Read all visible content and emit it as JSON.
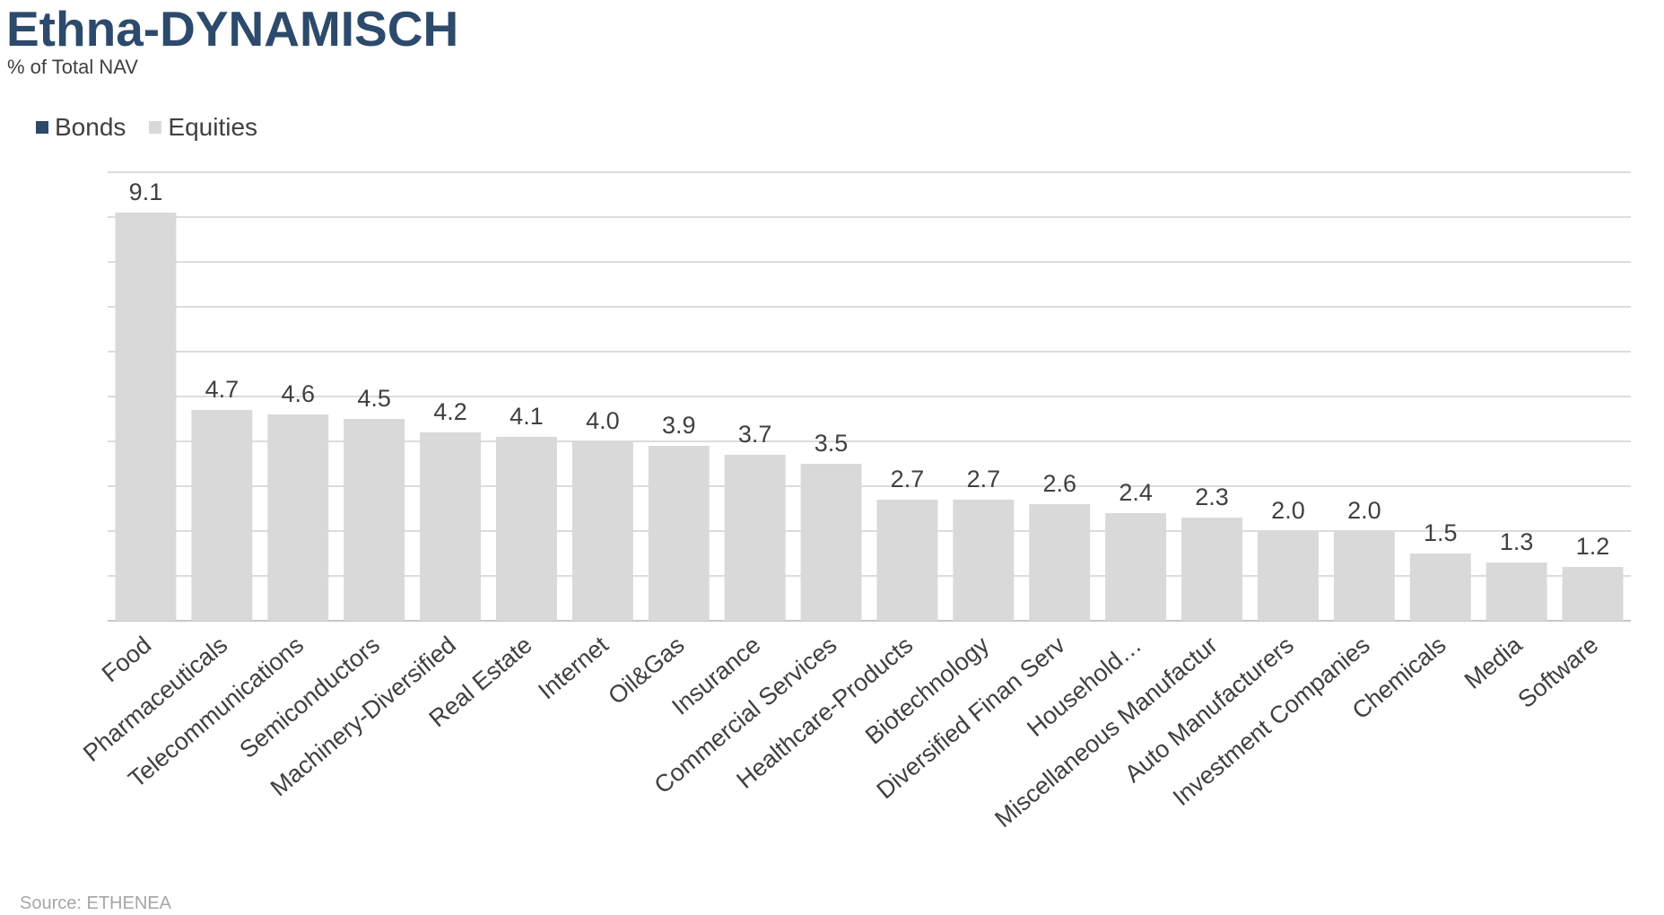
{
  "header": {
    "title": "Ethna-DYNAMISCH",
    "subtitle": "% of Total NAV"
  },
  "footer": {
    "source": "Source: ETHENEA"
  },
  "colors": {
    "bonds": "#2c4a6b",
    "equities": "#d9d9d9",
    "gridline": "#d0d0d0",
    "axis_text": "#404040",
    "title": "#2c4a6b"
  },
  "chart_data": {
    "type": "bar",
    "title": "Ethna-DYNAMISCH",
    "subtitle": "% of Total NAV",
    "legend_position": "top-left",
    "grid": true,
    "ylim": [
      0,
      10
    ],
    "categories": [
      "Food",
      "Pharmaceuticals",
      "Telecommunications",
      "Semiconductors",
      "Machinery-Diversified",
      "Real Estate",
      "Internet",
      "Oil&Gas",
      "Insurance",
      "Commercial Services",
      "Healthcare-Products",
      "Biotechnology",
      "Diversified Finan Serv",
      "Household…",
      "Miscellaneous Manufactur",
      "Auto Manufacturers",
      "Investment Companies",
      "Chemicals",
      "Media",
      "Software"
    ],
    "series": [
      {
        "name": "Bonds",
        "color": "#2c4a6b",
        "values": [
          0,
          0,
          0,
          0,
          0,
          0,
          0,
          0,
          0,
          0,
          0,
          0,
          0,
          0,
          0,
          0,
          0,
          0,
          0,
          0
        ]
      },
      {
        "name": "Equities",
        "color": "#d9d9d9",
        "values": [
          9.1,
          4.7,
          4.6,
          4.5,
          4.2,
          4.1,
          4.0,
          3.9,
          3.7,
          3.5,
          2.7,
          2.7,
          2.6,
          2.4,
          2.3,
          2.0,
          2.0,
          1.5,
          1.3,
          1.2
        ]
      }
    ],
    "data_labels": [
      "9.1",
      "4.7",
      "4.6",
      "4.5",
      "4.2",
      "4.1",
      "4.0",
      "3.9",
      "3.7",
      "3.5",
      "2.7",
      "2.7",
      "2.6",
      "2.4",
      "2.3",
      "2.0",
      "2.0",
      "1.5",
      "1.3",
      "1.2"
    ]
  }
}
